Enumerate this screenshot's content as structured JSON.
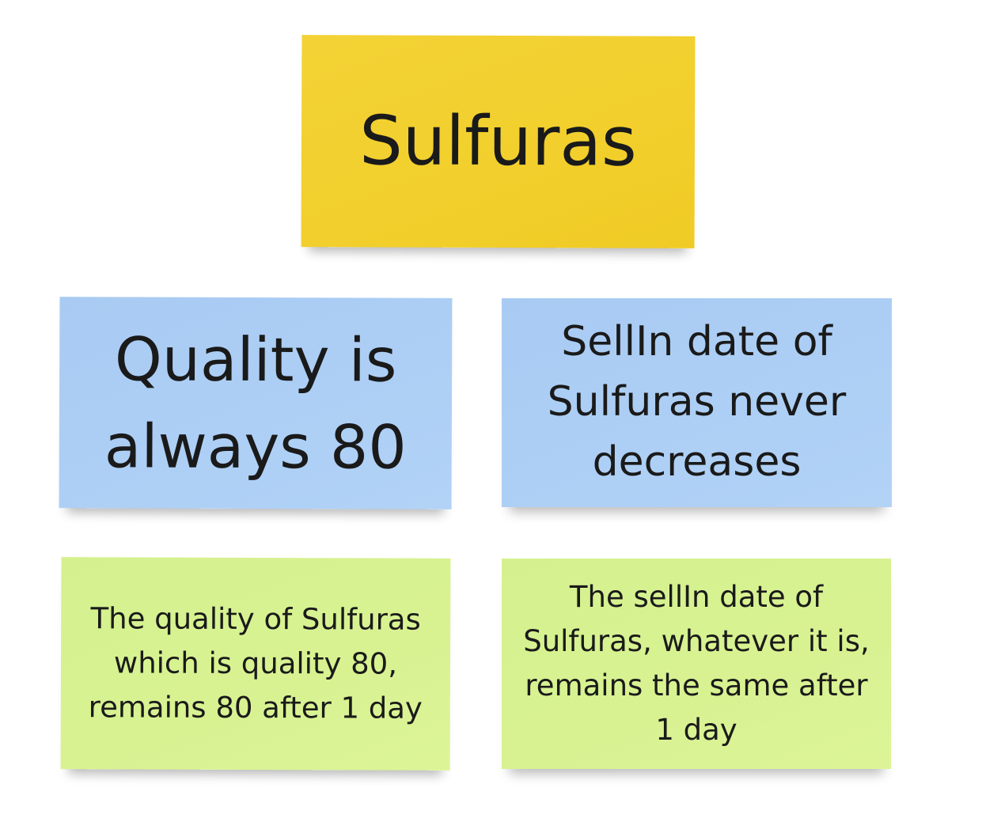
{
  "notes": {
    "title": "Sulfuras",
    "quality_rule": "Quality is always 80",
    "sellin_rule": "SellIn date of Sulfuras never decreases",
    "quality_test": "The quality of Sulfuras which is quality 80, remains 80 after 1 day",
    "sellin_test": "The sellIn date of Sulfuras, whatever it is, remains the same after 1 day"
  },
  "colors": {
    "yellow_note": "#f2cf2c",
    "blue_note": "#adcff5",
    "green_note": "#d8f292",
    "text": "#1a1a1a"
  }
}
